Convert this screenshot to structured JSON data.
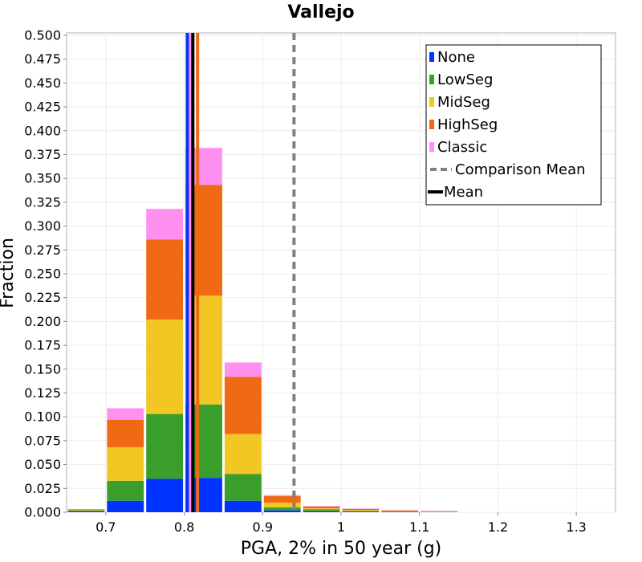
{
  "chart_data": {
    "type": "bar",
    "stacked": true,
    "title": "Vallejo",
    "xlabel": "PGA, 2% in 50 year (g)",
    "ylabel": "Fraction",
    "xlim": [
      0.65,
      1.35
    ],
    "ylim": [
      0,
      0.5025
    ],
    "x_ticks": [
      "0.7",
      "0.8",
      "0.9",
      "1",
      "1.1",
      "1.2",
      "1.3"
    ],
    "y_ticks": [
      "0.000",
      "0.025",
      "0.050",
      "0.075",
      "0.100",
      "0.125",
      "0.150",
      "0.175",
      "0.200",
      "0.225",
      "0.250",
      "0.275",
      "0.300",
      "0.325",
      "0.350",
      "0.375",
      "0.400",
      "0.425",
      "0.450",
      "0.475",
      "0.500"
    ],
    "bin_width": 0.05,
    "bin_centers": [
      0.675,
      0.725,
      0.775,
      0.825,
      0.875,
      0.925,
      0.975,
      1.025,
      1.075,
      1.125
    ],
    "series": [
      {
        "name": "None",
        "color": "#0033ff",
        "values": [
          0.001,
          0.012,
          0.035,
          0.036,
          0.012,
          0.002,
          0.001,
          0.0005,
          0.0005,
          0.0002
        ]
      },
      {
        "name": "LowSeg",
        "color": "#3a9e2a",
        "values": [
          0.001,
          0.021,
          0.068,
          0.077,
          0.028,
          0.003,
          0.002,
          0.001,
          0.0005,
          0.0002
        ]
      },
      {
        "name": "MidSeg",
        "color": "#f2c724",
        "values": [
          0.0005,
          0.035,
          0.099,
          0.114,
          0.042,
          0.005,
          0.001,
          0.001,
          0.0005,
          0.0002
        ]
      },
      {
        "name": "HighSeg",
        "color": "#f06a14",
        "values": [
          0.0005,
          0.029,
          0.084,
          0.116,
          0.06,
          0.007,
          0.002,
          0.001,
          0.0005,
          0.0005
        ]
      },
      {
        "name": "Classic",
        "color": "#ff90f0",
        "values": [
          0.0003,
          0.012,
          0.032,
          0.039,
          0.015,
          0.001,
          0.0005,
          0.0005,
          0.0003,
          0.0002
        ]
      }
    ],
    "vertical_lines": [
      {
        "name": "None mean",
        "x": 0.804,
        "color": "#0033ff",
        "style": "solid"
      },
      {
        "name": "Classic mean",
        "x": 0.808,
        "color": "#ff90f0",
        "style": "solid"
      },
      {
        "name": "HighSeg mean",
        "x": 0.817,
        "color": "#f06a14",
        "style": "solid"
      },
      {
        "name": "Mean",
        "x": 0.811,
        "color": "#000000",
        "style": "solid"
      },
      {
        "name": "Comparison Mean",
        "x": 0.94,
        "color": "#808080",
        "style": "dashed"
      }
    ],
    "legend": {
      "position": "top-right",
      "entries": [
        {
          "label": "None",
          "color": "#0033ff",
          "kind": "box"
        },
        {
          "label": "LowSeg",
          "color": "#3a9e2a",
          "kind": "box"
        },
        {
          "label": "MidSeg",
          "color": "#f2c724",
          "kind": "box"
        },
        {
          "label": "HighSeg",
          "color": "#f06a14",
          "kind": "box"
        },
        {
          "label": "Classic",
          "color": "#ff90f0",
          "kind": "box"
        },
        {
          "label": "Comparison Mean",
          "color": "#808080",
          "kind": "dashed"
        },
        {
          "label": "Mean",
          "color": "#000000",
          "kind": "line"
        }
      ]
    },
    "grid": true
  }
}
